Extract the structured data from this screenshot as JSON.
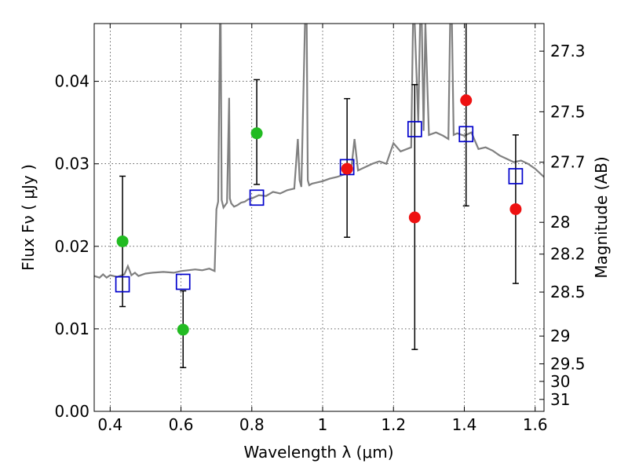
{
  "chart_data": {
    "type": "scatter",
    "xlabel": "Wavelength  λ (μm)",
    "ylabel": "Flux  Fν  ( μJy )",
    "y2label": "Magnitude (AB)",
    "xlim": [
      0.355,
      1.625
    ],
    "ylim": [
      0.0,
      0.047
    ],
    "grid": true,
    "colors": {
      "model": "#808080",
      "green": "#22bb22",
      "red": "#ee1111",
      "box": "#0000cc",
      "errorbar": "#000000"
    },
    "x_ticks": [
      {
        "value": 0.4,
        "label": "0.4"
      },
      {
        "value": 0.6,
        "label": "0.6"
      },
      {
        "value": 0.8,
        "label": "0.8"
      },
      {
        "value": 1.0,
        "label": "1"
      },
      {
        "value": 1.2,
        "label": "1.2"
      },
      {
        "value": 1.4,
        "label": "1.4"
      },
      {
        "value": 1.6,
        "label": "1.6"
      }
    ],
    "y_ticks": [
      {
        "value": 0.0,
        "label": "0.00"
      },
      {
        "value": 0.01,
        "label": "0.01"
      },
      {
        "value": 0.02,
        "label": "0.02"
      },
      {
        "value": 0.03,
        "label": "0.03"
      },
      {
        "value": 0.04,
        "label": "0.04"
      }
    ],
    "y2_ticks": [
      {
        "value": 27.3,
        "label": "27.3"
      },
      {
        "value": 27.5,
        "label": "27.5"
      },
      {
        "value": 27.7,
        "label": "27.7"
      },
      {
        "value": 28.0,
        "label": "28"
      },
      {
        "value": 28.2,
        "label": "28.2"
      },
      {
        "value": 28.5,
        "label": "28.5"
      },
      {
        "value": 29.0,
        "label": "29"
      },
      {
        "value": 29.5,
        "label": "29.5"
      },
      {
        "value": 30.0,
        "label": "30"
      },
      {
        "value": 31.0,
        "label": "31"
      }
    ],
    "observed_points": [
      {
        "x": 0.435,
        "y": 0.0206,
        "color": "green",
        "yerr_low": 0.0127,
        "yerr_high": 0.0285
      },
      {
        "x": 0.606,
        "y": 0.0099,
        "color": "green",
        "yerr_low": 0.0053,
        "yerr_high": 0.0146
      },
      {
        "x": 0.814,
        "y": 0.0337,
        "color": "green",
        "yerr_low": 0.0275,
        "yerr_high": 0.0402
      },
      {
        "x": 1.069,
        "y": 0.0294,
        "color": "red",
        "yerr_low": 0.0211,
        "yerr_high": 0.0379
      },
      {
        "x": 1.26,
        "y": 0.0235,
        "color": "red",
        "yerr_low": 0.0075,
        "yerr_high": 0.0396
      },
      {
        "x": 1.405,
        "y": 0.0377,
        "color": "red",
        "yerr_low": 0.0249,
        "yerr_high": 0.0473
      },
      {
        "x": 1.545,
        "y": 0.0245,
        "color": "red",
        "yerr_low": 0.0155,
        "yerr_high": 0.0335
      }
    ],
    "model_points": [
      {
        "x": 0.435,
        "y": 0.0154
      },
      {
        "x": 0.606,
        "y": 0.0157
      },
      {
        "x": 0.814,
        "y": 0.0259
      },
      {
        "x": 1.069,
        "y": 0.0296
      },
      {
        "x": 1.26,
        "y": 0.0342
      },
      {
        "x": 1.405,
        "y": 0.0336
      },
      {
        "x": 1.545,
        "y": 0.0285
      }
    ],
    "model_spectrum": {
      "x": [
        0.355,
        0.37,
        0.38,
        0.39,
        0.4,
        0.42,
        0.44,
        0.45,
        0.46,
        0.47,
        0.48,
        0.5,
        0.52,
        0.55,
        0.58,
        0.6,
        0.62,
        0.64,
        0.66,
        0.68,
        0.695,
        0.7,
        0.705,
        0.71,
        0.712,
        0.715,
        0.72,
        0.73,
        0.736,
        0.738,
        0.742,
        0.75,
        0.76,
        0.77,
        0.78,
        0.79,
        0.8,
        0.82,
        0.84,
        0.86,
        0.88,
        0.9,
        0.92,
        0.93,
        0.935,
        0.94,
        0.95,
        0.955,
        0.958,
        0.962,
        0.97,
        1.0,
        1.02,
        1.04,
        1.06,
        1.08,
        1.09,
        1.1,
        1.12,
        1.14,
        1.16,
        1.18,
        1.2,
        1.22,
        1.25,
        1.255,
        1.26,
        1.27,
        1.275,
        1.28,
        1.285,
        1.29,
        1.3,
        1.32,
        1.34,
        1.355,
        1.36,
        1.365,
        1.37,
        1.38,
        1.4,
        1.42,
        1.44,
        1.46,
        1.48,
        1.5,
        1.52,
        1.54,
        1.56,
        1.58,
        1.6,
        1.625
      ],
      "y": [
        0.0164,
        0.0162,
        0.0166,
        0.0162,
        0.0165,
        0.0163,
        0.0166,
        0.0176,
        0.0165,
        0.0168,
        0.0164,
        0.0167,
        0.0168,
        0.0169,
        0.0168,
        0.017,
        0.0171,
        0.0172,
        0.0171,
        0.0173,
        0.017,
        0.0245,
        0.0254,
        0.047,
        0.047,
        0.0256,
        0.0247,
        0.0253,
        0.038,
        0.0258,
        0.0252,
        0.0248,
        0.025,
        0.0253,
        0.0254,
        0.0257,
        0.0258,
        0.0262,
        0.0261,
        0.0266,
        0.0264,
        0.0268,
        0.027,
        0.033,
        0.028,
        0.0272,
        0.047,
        0.047,
        0.028,
        0.0274,
        0.0276,
        0.0279,
        0.0282,
        0.0284,
        0.0287,
        0.029,
        0.033,
        0.0292,
        0.0296,
        0.03,
        0.0303,
        0.03,
        0.0325,
        0.0315,
        0.032,
        0.047,
        0.047,
        0.035,
        0.047,
        0.047,
        0.034,
        0.047,
        0.0335,
        0.0338,
        0.0334,
        0.033,
        0.047,
        0.047,
        0.0335,
        0.0337,
        0.0334,
        0.0338,
        0.0318,
        0.032,
        0.0316,
        0.031,
        0.0306,
        0.0302,
        0.0304,
        0.03,
        0.0294,
        0.0284
      ]
    }
  }
}
